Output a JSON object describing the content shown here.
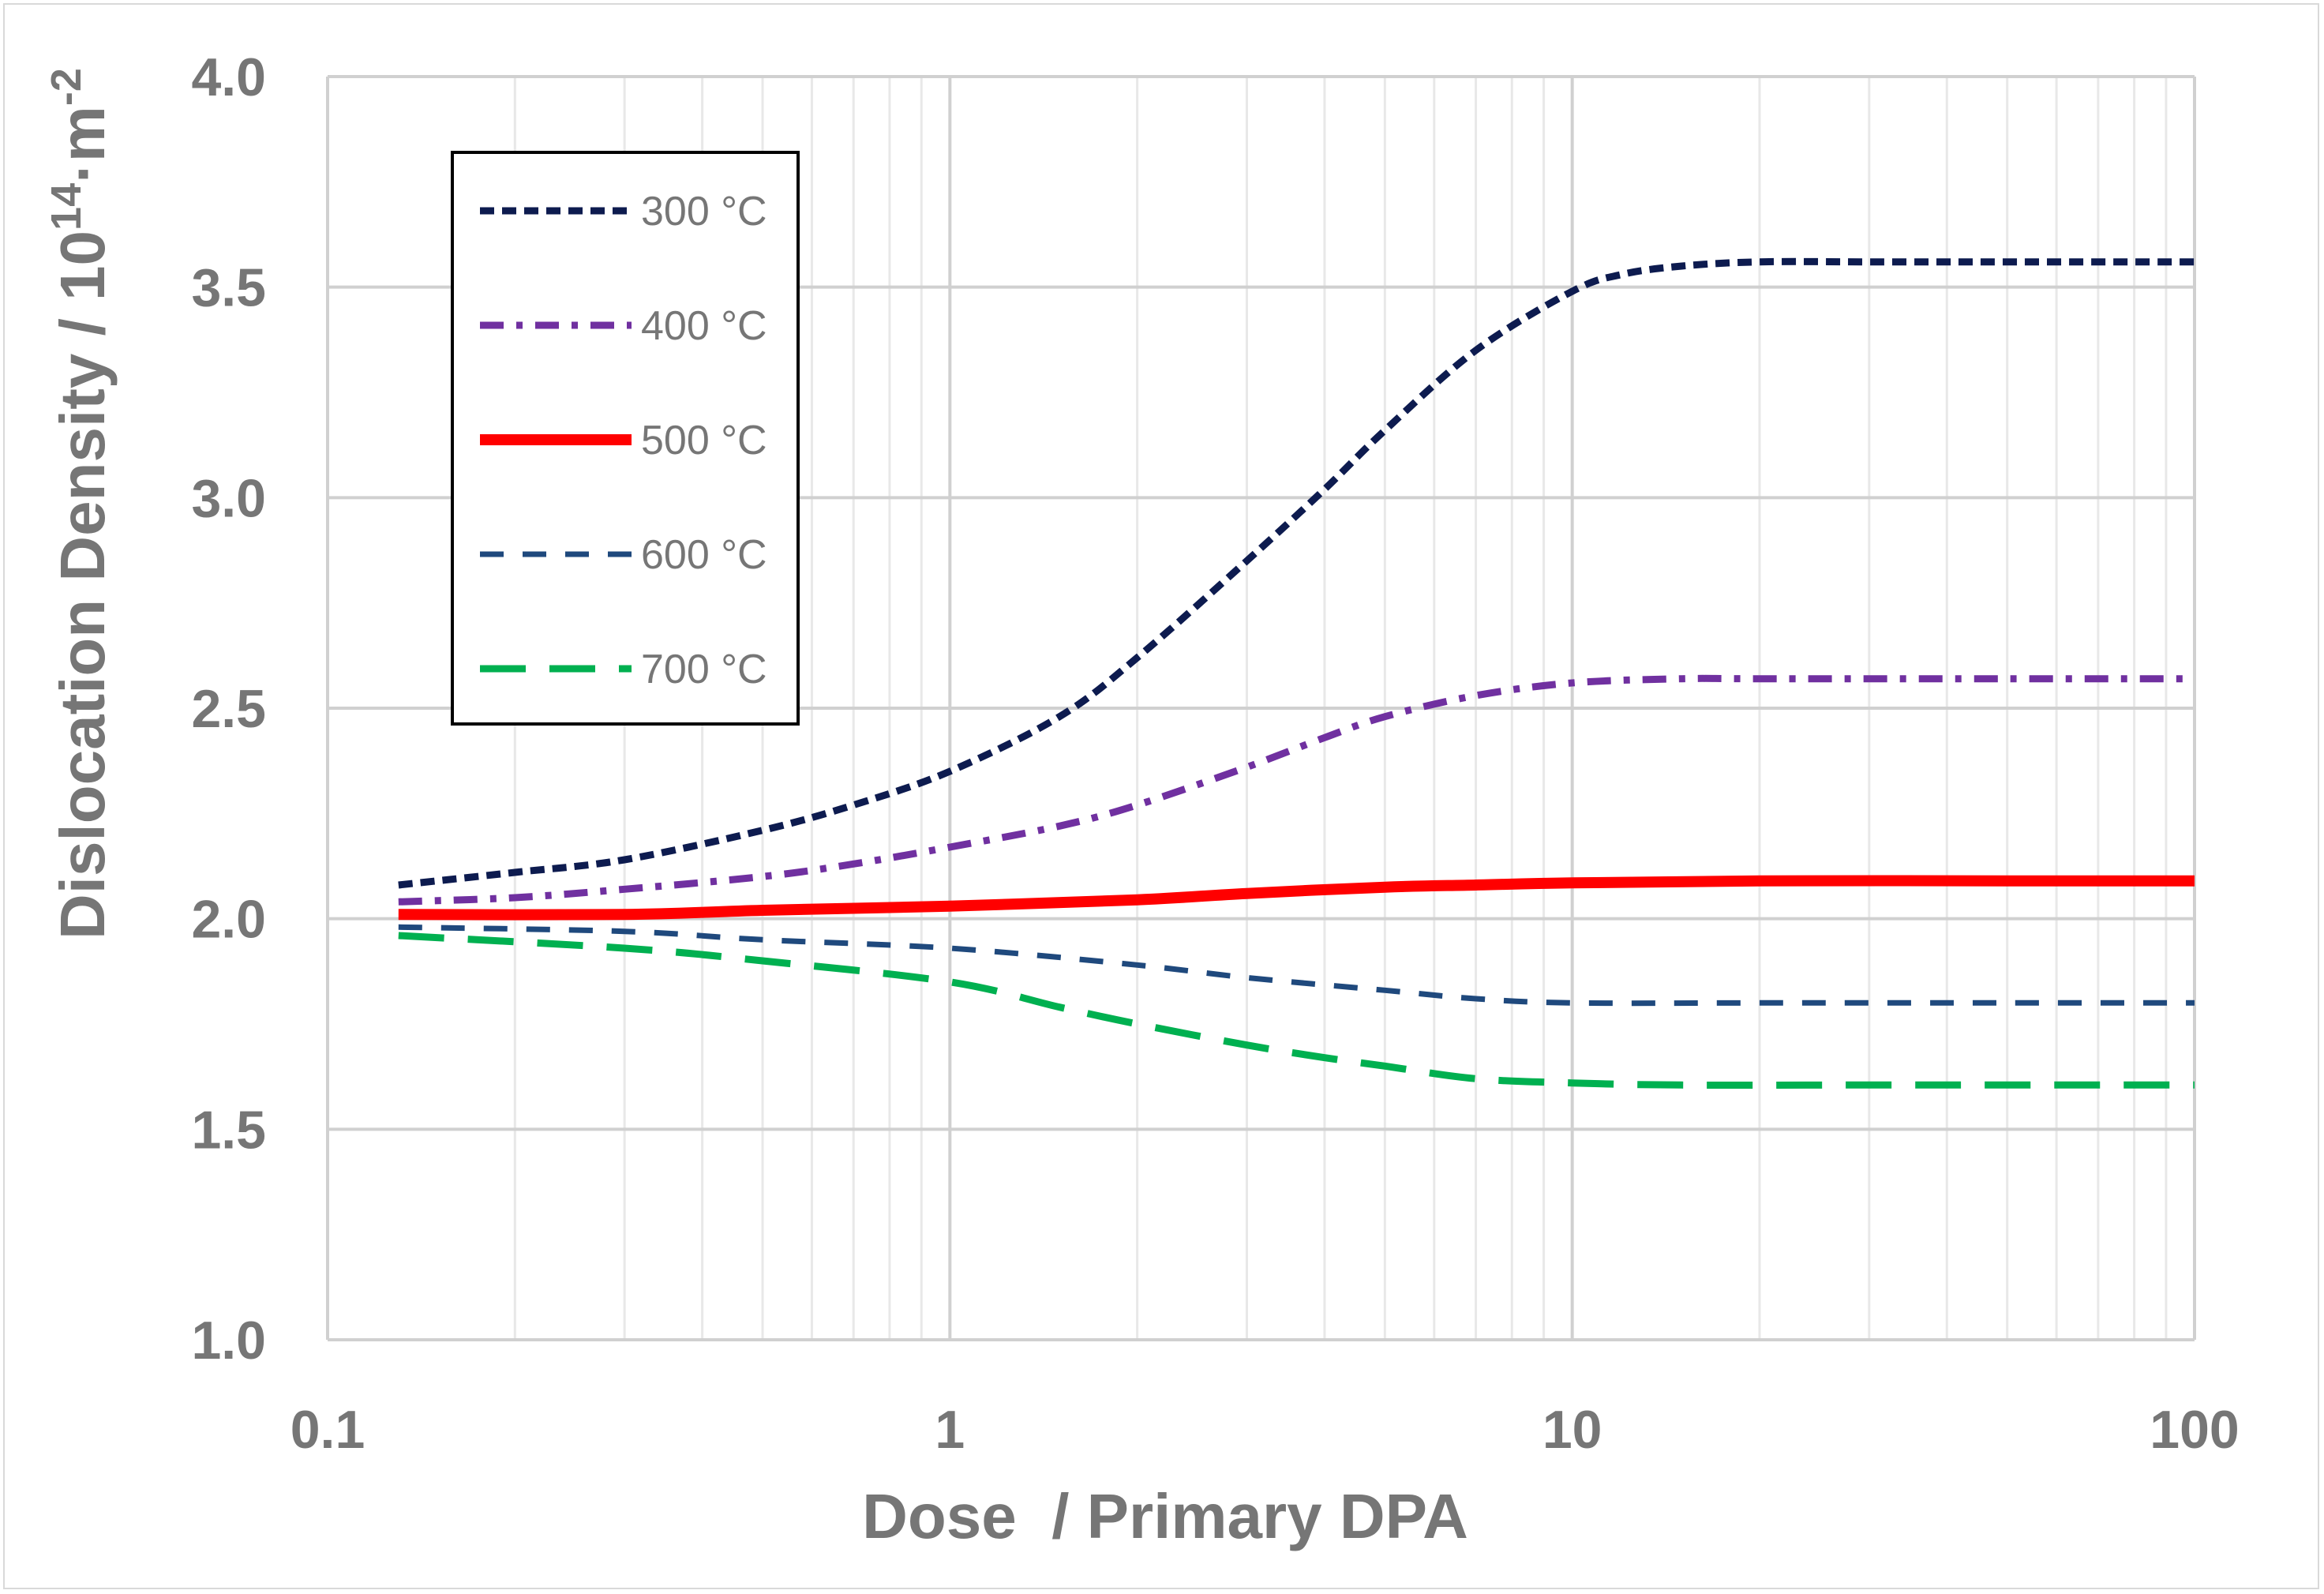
{
  "chart_data": {
    "type": "line",
    "title": "",
    "xlabel": "Dose  / Primary DPA",
    "ylabel": "Dislocation Density / 10",
    "ylabel_sup_exponent": "14",
    "ylabel_mid": "·m",
    "ylabel_sup_unit": "-2",
    "x_scale": "log",
    "xlim": [
      0.1,
      100
    ],
    "ylim": [
      1.0,
      4.0
    ],
    "x_ticks": [
      {
        "value": 0.1,
        "label": "0.1"
      },
      {
        "value": 1,
        "label": "1"
      },
      {
        "value": 10,
        "label": "10"
      },
      {
        "value": 100,
        "label": "100"
      }
    ],
    "y_ticks": [
      {
        "value": 1.0,
        "label": "1.0"
      },
      {
        "value": 1.5,
        "label": "1.5"
      },
      {
        "value": 2.0,
        "label": "2.0"
      },
      {
        "value": 2.5,
        "label": "2.5"
      },
      {
        "value": 3.0,
        "label": "3.0"
      },
      {
        "value": 3.5,
        "label": "3.5"
      },
      {
        "value": 4.0,
        "label": "4.0"
      }
    ],
    "grid": true,
    "legend_position": "top-left",
    "series": [
      {
        "name": "300 °C",
        "color": "#0d1b4f",
        "dash": "short-dash",
        "points": [
          [
            0.13,
            2.08
          ],
          [
            0.2,
            2.11
          ],
          [
            0.3,
            2.14
          ],
          [
            0.5,
            2.21
          ],
          [
            0.7,
            2.27
          ],
          [
            1.0,
            2.35
          ],
          [
            1.5,
            2.48
          ],
          [
            2.0,
            2.62
          ],
          [
            3.0,
            2.85
          ],
          [
            4.0,
            3.02
          ],
          [
            5.0,
            3.16
          ],
          [
            7.0,
            3.35
          ],
          [
            10,
            3.49
          ],
          [
            12,
            3.53
          ],
          [
            15,
            3.55
          ],
          [
            20,
            3.56
          ],
          [
            30,
            3.56
          ],
          [
            50,
            3.56
          ],
          [
            100,
            3.56
          ]
        ]
      },
      {
        "name": "400 °C",
        "color": "#7030a0",
        "dash": "dash-dot",
        "points": [
          [
            0.13,
            2.04
          ],
          [
            0.2,
            2.05
          ],
          [
            0.3,
            2.07
          ],
          [
            0.5,
            2.1
          ],
          [
            0.7,
            2.13
          ],
          [
            1.0,
            2.17
          ],
          [
            1.5,
            2.22
          ],
          [
            2.0,
            2.27
          ],
          [
            3.0,
            2.36
          ],
          [
            4.0,
            2.43
          ],
          [
            5.0,
            2.48
          ],
          [
            7.0,
            2.53
          ],
          [
            10,
            2.56
          ],
          [
            15,
            2.57
          ],
          [
            20,
            2.57
          ],
          [
            50,
            2.57
          ],
          [
            100,
            2.57
          ]
        ]
      },
      {
        "name": "500 °C",
        "color": "#ff0000",
        "dash": "solid",
        "points": [
          [
            0.13,
            2.01
          ],
          [
            0.3,
            2.01
          ],
          [
            0.5,
            2.02
          ],
          [
            1.0,
            2.03
          ],
          [
            2.0,
            2.045
          ],
          [
            3.0,
            2.06
          ],
          [
            5.0,
            2.075
          ],
          [
            7.0,
            2.08
          ],
          [
            10,
            2.085
          ],
          [
            20,
            2.09
          ],
          [
            50,
            2.09
          ],
          [
            100,
            2.09
          ]
        ]
      },
      {
        "name": "600 °C",
        "color": "#1f497d",
        "dash": "medium-dash",
        "points": [
          [
            0.13,
            1.98
          ],
          [
            0.3,
            1.97
          ],
          [
            0.5,
            1.95
          ],
          [
            1.0,
            1.93
          ],
          [
            2.0,
            1.89
          ],
          [
            3.0,
            1.86
          ],
          [
            5.0,
            1.83
          ],
          [
            7.0,
            1.81
          ],
          [
            10,
            1.8
          ],
          [
            20,
            1.8
          ],
          [
            50,
            1.8
          ],
          [
            100,
            1.8
          ]
        ]
      },
      {
        "name": "700 °C",
        "color": "#00b050",
        "dash": "long-dash",
        "points": [
          [
            0.13,
            1.96
          ],
          [
            0.3,
            1.93
          ],
          [
            0.5,
            1.9
          ],
          [
            1.0,
            1.85
          ],
          [
            1.5,
            1.79
          ],
          [
            2.0,
            1.75
          ],
          [
            3.0,
            1.7
          ],
          [
            4.0,
            1.67
          ],
          [
            5.0,
            1.65
          ],
          [
            7.0,
            1.62
          ],
          [
            10,
            1.61
          ],
          [
            15,
            1.605
          ],
          [
            30,
            1.605
          ],
          [
            100,
            1.605
          ]
        ]
      }
    ]
  }
}
